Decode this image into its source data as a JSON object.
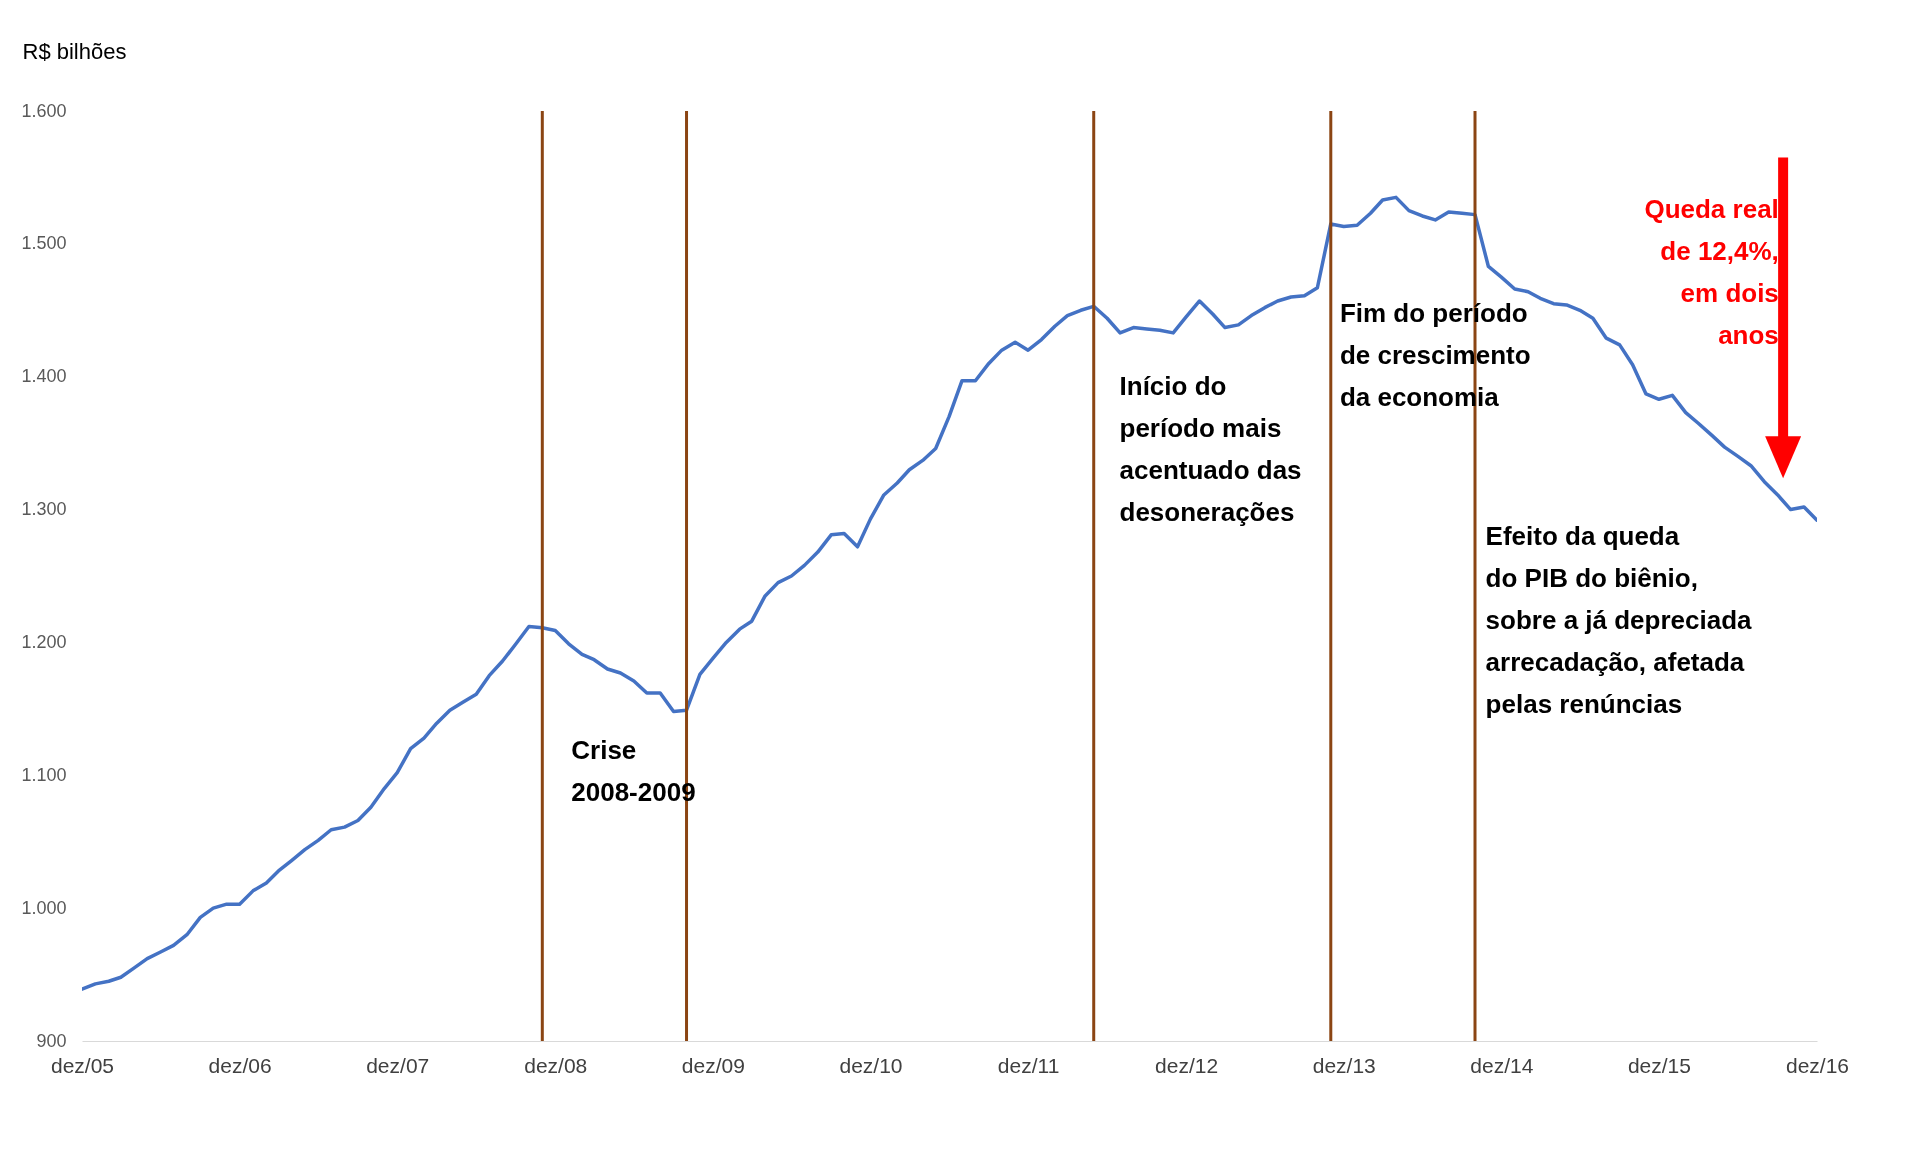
{
  "chart_data": {
    "type": "line",
    "ylabel": "R$ bilhões",
    "grid": false,
    "marker": "none",
    "line_style": "solid",
    "x": [
      "2005-12",
      "2006-01",
      "2006-02",
      "2006-03",
      "2006-04",
      "2006-05",
      "2006-06",
      "2006-07",
      "2006-08",
      "2006-09",
      "2006-10",
      "2006-11",
      "2006-12",
      "2007-01",
      "2007-02",
      "2007-03",
      "2007-04",
      "2007-05",
      "2007-06",
      "2007-07",
      "2007-08",
      "2007-09",
      "2007-10",
      "2007-11",
      "2007-12",
      "2008-01",
      "2008-02",
      "2008-03",
      "2008-04",
      "2008-05",
      "2008-06",
      "2008-07",
      "2008-08",
      "2008-09",
      "2008-10",
      "2008-11",
      "2008-12",
      "2009-01",
      "2009-02",
      "2009-03",
      "2009-04",
      "2009-05",
      "2009-06",
      "2009-07",
      "2009-08",
      "2009-09",
      "2009-10",
      "2009-11",
      "2009-12",
      "2010-01",
      "2010-02",
      "2010-03",
      "2010-04",
      "2010-05",
      "2010-06",
      "2010-07",
      "2010-08",
      "2010-09",
      "2010-10",
      "2010-11",
      "2010-12",
      "2011-01",
      "2011-02",
      "2011-03",
      "2011-04",
      "2011-05",
      "2011-06",
      "2011-07",
      "2011-08",
      "2011-09",
      "2011-10",
      "2011-11",
      "2011-12",
      "2012-01",
      "2012-02",
      "2012-03",
      "2012-04",
      "2012-05",
      "2012-06",
      "2012-07",
      "2012-08",
      "2012-09",
      "2012-10",
      "2012-11",
      "2012-12",
      "2013-01",
      "2013-02",
      "2013-03",
      "2013-04",
      "2013-05",
      "2013-06",
      "2013-07",
      "2013-08",
      "2013-09",
      "2013-10",
      "2013-11",
      "2013-12",
      "2014-01",
      "2014-02",
      "2014-03",
      "2014-04",
      "2014-05",
      "2014-06",
      "2014-07",
      "2014-08",
      "2014-09",
      "2014-10",
      "2014-11",
      "2014-12",
      "2015-01",
      "2015-02",
      "2015-03",
      "2015-04",
      "2015-05",
      "2015-06",
      "2015-07",
      "2015-08",
      "2015-09",
      "2015-10",
      "2015-11",
      "2015-12",
      "2016-01",
      "2016-02",
      "2016-03",
      "2016-04",
      "2016-05",
      "2016-06",
      "2016-07",
      "2016-08",
      "2016-09",
      "2016-10",
      "2016-11",
      "2016-12"
    ],
    "series": [
      {
        "color": "#4472c4",
        "values": [
          939,
          943,
          945,
          948,
          955,
          962,
          967,
          972,
          980,
          993,
          1000,
          1003,
          1003,
          1013,
          1019,
          1028,
          1036,
          1044,
          1051,
          1059,
          1061,
          1066,
          1076,
          1090,
          1102,
          1120,
          1128,
          1139,
          1149,
          1155,
          1161,
          1175,
          1186,
          1199,
          1212,
          1211,
          1209,
          1199,
          1191,
          1187,
          1180,
          1177,
          1171,
          1162,
          1162,
          1148,
          1149,
          1176,
          1188,
          1200,
          1210,
          1216,
          1235,
          1245,
          1250,
          1258,
          1268,
          1281,
          1282,
          1272,
          1293,
          1311,
          1320,
          1330,
          1337,
          1346,
          1370,
          1397,
          1397,
          1410,
          1420,
          1426,
          1420,
          1428,
          1438,
          1446,
          1450,
          1453,
          1444,
          1433,
          1437,
          1436,
          1435,
          1433,
          1445,
          1457,
          1447,
          1437,
          1439,
          1446,
          1452,
          1457,
          1460,
          1461,
          1467,
          1515,
          1513,
          1514,
          1523,
          1533,
          1535,
          1525,
          1521,
          1518,
          1524,
          1523,
          1522,
          1483,
          1475,
          1466,
          1464,
          1459,
          1455,
          1454,
          1450,
          1444,
          1429,
          1424,
          1409,
          1387,
          1383,
          1386,
          1373,
          1365,
          1356,
          1347,
          1340,
          1333,
          1321,
          1311,
          1300,
          1302,
          1292
        ]
      }
    ],
    "xlim": [
      "2005-12",
      "2016-12"
    ],
    "xticks": [
      {
        "value": "2005-12",
        "label": "dez/05"
      },
      {
        "value": "2006-12",
        "label": "dez/06"
      },
      {
        "value": "2007-12",
        "label": "dez/07"
      },
      {
        "value": "2008-12",
        "label": "dez/08"
      },
      {
        "value": "2009-12",
        "label": "dez/09"
      },
      {
        "value": "2010-12",
        "label": "dez/10"
      },
      {
        "value": "2011-12",
        "label": "dez/11"
      },
      {
        "value": "2012-12",
        "label": "dez/12"
      },
      {
        "value": "2013-12",
        "label": "dez/13"
      },
      {
        "value": "2014-12",
        "label": "dez/14"
      },
      {
        "value": "2015-12",
        "label": "dez/15"
      },
      {
        "value": "2016-12",
        "label": "dez/16"
      }
    ],
    "ylim": [
      900,
      1600
    ],
    "yticks": [
      {
        "value": 900,
        "label": "900"
      },
      {
        "value": 1000,
        "label": "1.000"
      },
      {
        "value": 1100,
        "label": "1.100"
      },
      {
        "value": 1200,
        "label": "1.200"
      },
      {
        "value": 1300,
        "label": "1.300"
      },
      {
        "value": 1400,
        "label": "1.400"
      },
      {
        "value": 1500,
        "label": "1.500"
      },
      {
        "value": 1600,
        "label": "1.600"
      }
    ],
    "ref_lines": [
      {
        "axis": "x",
        "value": "2008-11",
        "color": "#8b4513"
      },
      {
        "axis": "x",
        "value": "2009-10",
        "color": "#8b4513"
      },
      {
        "axis": "x",
        "value": "2012-05",
        "color": "#8b4513"
      },
      {
        "axis": "x",
        "value": "2013-11",
        "color": "#8b4513"
      },
      {
        "axis": "x",
        "value": "2014-10",
        "color": "#8b4513"
      }
    ],
    "annotations": [
      "Crise\n2008-2009",
      "Início do\nperíodo mais\nacentuado das\ndesonerações",
      "Fim do período\nde crescimento\nda economia",
      "Efeito da queda\n do PIB do biênio,\nsobre a já depreciada\narrecadação,  afetada\npelas renúncias",
      "Queda real\nde 12,4%,\nem dois\nanos"
    ]
  }
}
